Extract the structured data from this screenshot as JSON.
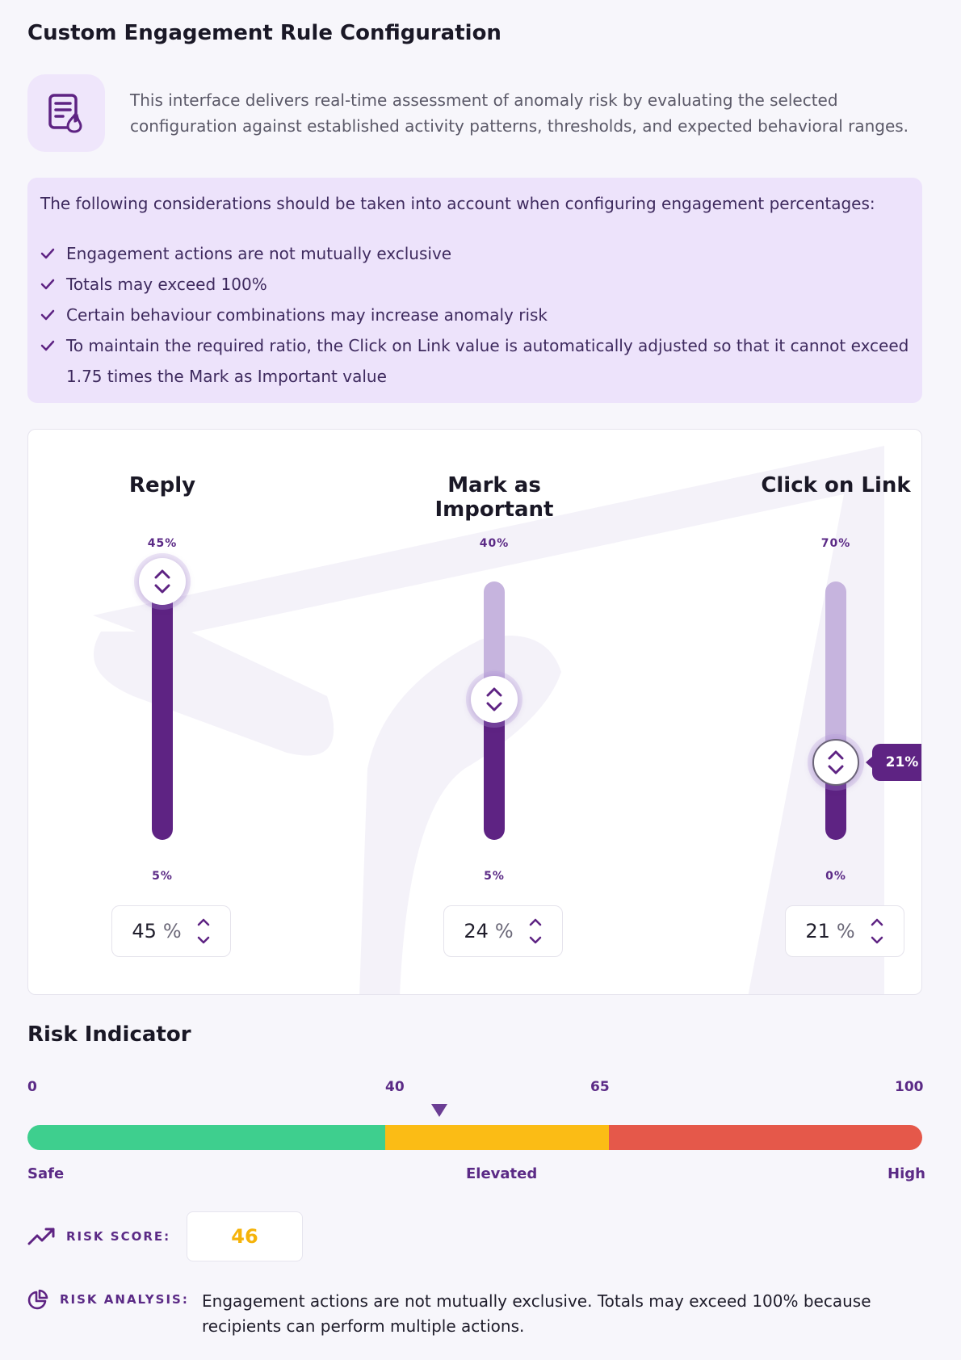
{
  "page_title": "Custom Engagement Rule Configuration",
  "intro": {
    "icon": "document-flame-icon",
    "text": "This interface delivers real-time assessment of anomaly risk by evaluating the selected configuration against established activity patterns, thresholds, and expected behavioral ranges."
  },
  "considerations": {
    "lead": "The following considerations should be taken into account when configuring engagement percentages:",
    "items": [
      "Engagement actions are not mutually exclusive",
      "Totals may exceed 100%",
      "Certain behaviour combinations may increase anomaly risk",
      "To maintain the required ratio, the Click on Link value is automatically adjusted so that it cannot exceed 1.75 times the Mark as Important value"
    ]
  },
  "sliders": [
    {
      "label": "Reply",
      "max_label": "45%",
      "min_label": "5%",
      "value": 45,
      "min": 5,
      "max": 45,
      "display_value": "45",
      "unit": "%"
    },
    {
      "label": "Mark as Important",
      "max_label": "40%",
      "min_label": "5%",
      "value": 24,
      "min": 5,
      "max": 40,
      "display_value": "24",
      "unit": "%"
    },
    {
      "label": "Click on Link",
      "max_label": "70%",
      "min_label": "0%",
      "value": 21,
      "min": 0,
      "max": 70,
      "display_value": "21",
      "unit": "%",
      "tooltip": "21%"
    }
  ],
  "risk": {
    "heading": "Risk Indicator",
    "ticks": [
      "0",
      "40",
      "65",
      "100"
    ],
    "zones": [
      "Safe",
      "Elevated",
      "High"
    ],
    "score_label": "RISK SCORE:",
    "score": "46",
    "score_value": 46,
    "analysis_label": "RISK ANALYSIS:",
    "analysis_text": "Engagement actions are not mutually exclusive. Totals may exceed 100% because recipients can perform multiple actions.",
    "colors": {
      "safe": "#3ecf8e",
      "elevated": "#fbbc15",
      "high": "#e5584a",
      "score": "#f5b30a"
    }
  }
}
